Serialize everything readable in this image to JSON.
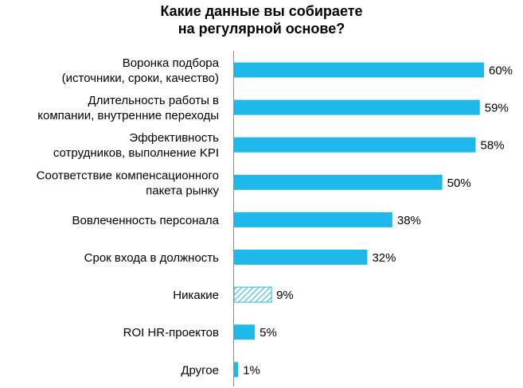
{
  "chart_data": {
    "type": "bar",
    "orientation": "horizontal",
    "title": [
      "Какие данные вы собираете",
      "на регулярной основе?"
    ],
    "categories": [
      [
        "Воронка подбора",
        "(источники, сроки, качество)"
      ],
      [
        "Длительность работы в",
        "компании, внутренние переходы"
      ],
      [
        "Эффективность",
        "сотрудников, выполнение KPI"
      ],
      [
        "Соответствие компенсационного",
        "пакета рынку"
      ],
      [
        "Вовлеченность персонала"
      ],
      [
        "Срок входа в должность"
      ],
      [
        "Никакие"
      ],
      [
        "ROI HR-проектов"
      ],
      [
        "Другое"
      ]
    ],
    "values": [
      60,
      59,
      58,
      50,
      38,
      32,
      9,
      5,
      1
    ],
    "value_labels": [
      "60%",
      "59%",
      "58%",
      "50%",
      "38%",
      "32%",
      "9%",
      "5%",
      "1%"
    ],
    "hatched": [
      false,
      false,
      false,
      false,
      false,
      false,
      true,
      false,
      false
    ],
    "xlim": [
      0,
      60
    ],
    "grid": false,
    "legend": "none"
  },
  "colors": {
    "bar": "#1fb8ea",
    "hatch": "#1fb8ea",
    "axis": "#8c8c8c"
  }
}
